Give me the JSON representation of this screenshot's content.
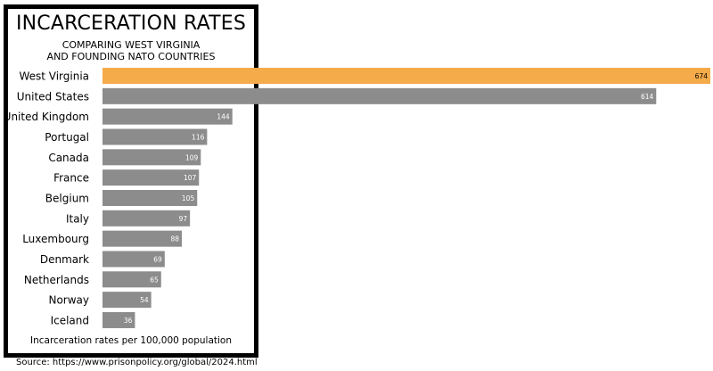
{
  "chart_data": {
    "type": "bar",
    "orientation": "horizontal",
    "title": "INCARCERATION RATES",
    "subtitle_lines": [
      "COMPARING WEST VIRGINIA",
      "AND FOUNDING NATO COUNTRIES"
    ],
    "categories": [
      "West Virginia",
      "United States",
      "United Kingdom",
      "Portugal",
      "Canada",
      "France",
      "Belgium",
      "Italy",
      "Luxembourg",
      "Denmark",
      "Netherlands",
      "Norway",
      "Iceland"
    ],
    "values": [
      674,
      614,
      144,
      116,
      109,
      107,
      105,
      97,
      88,
      69,
      65,
      54,
      36
    ],
    "highlight_category": "West Virginia",
    "highlight_color": "#f5ab4a",
    "bar_color": "#8c8c8c",
    "value_label_color": "#ffffff",
    "footnote": "Incarceration rates per 100,000 population",
    "xlim": [
      0,
      674
    ],
    "grid": false,
    "legend": "none"
  },
  "source": "Source: https://www.prisonpolicy.org/global/2024.html"
}
